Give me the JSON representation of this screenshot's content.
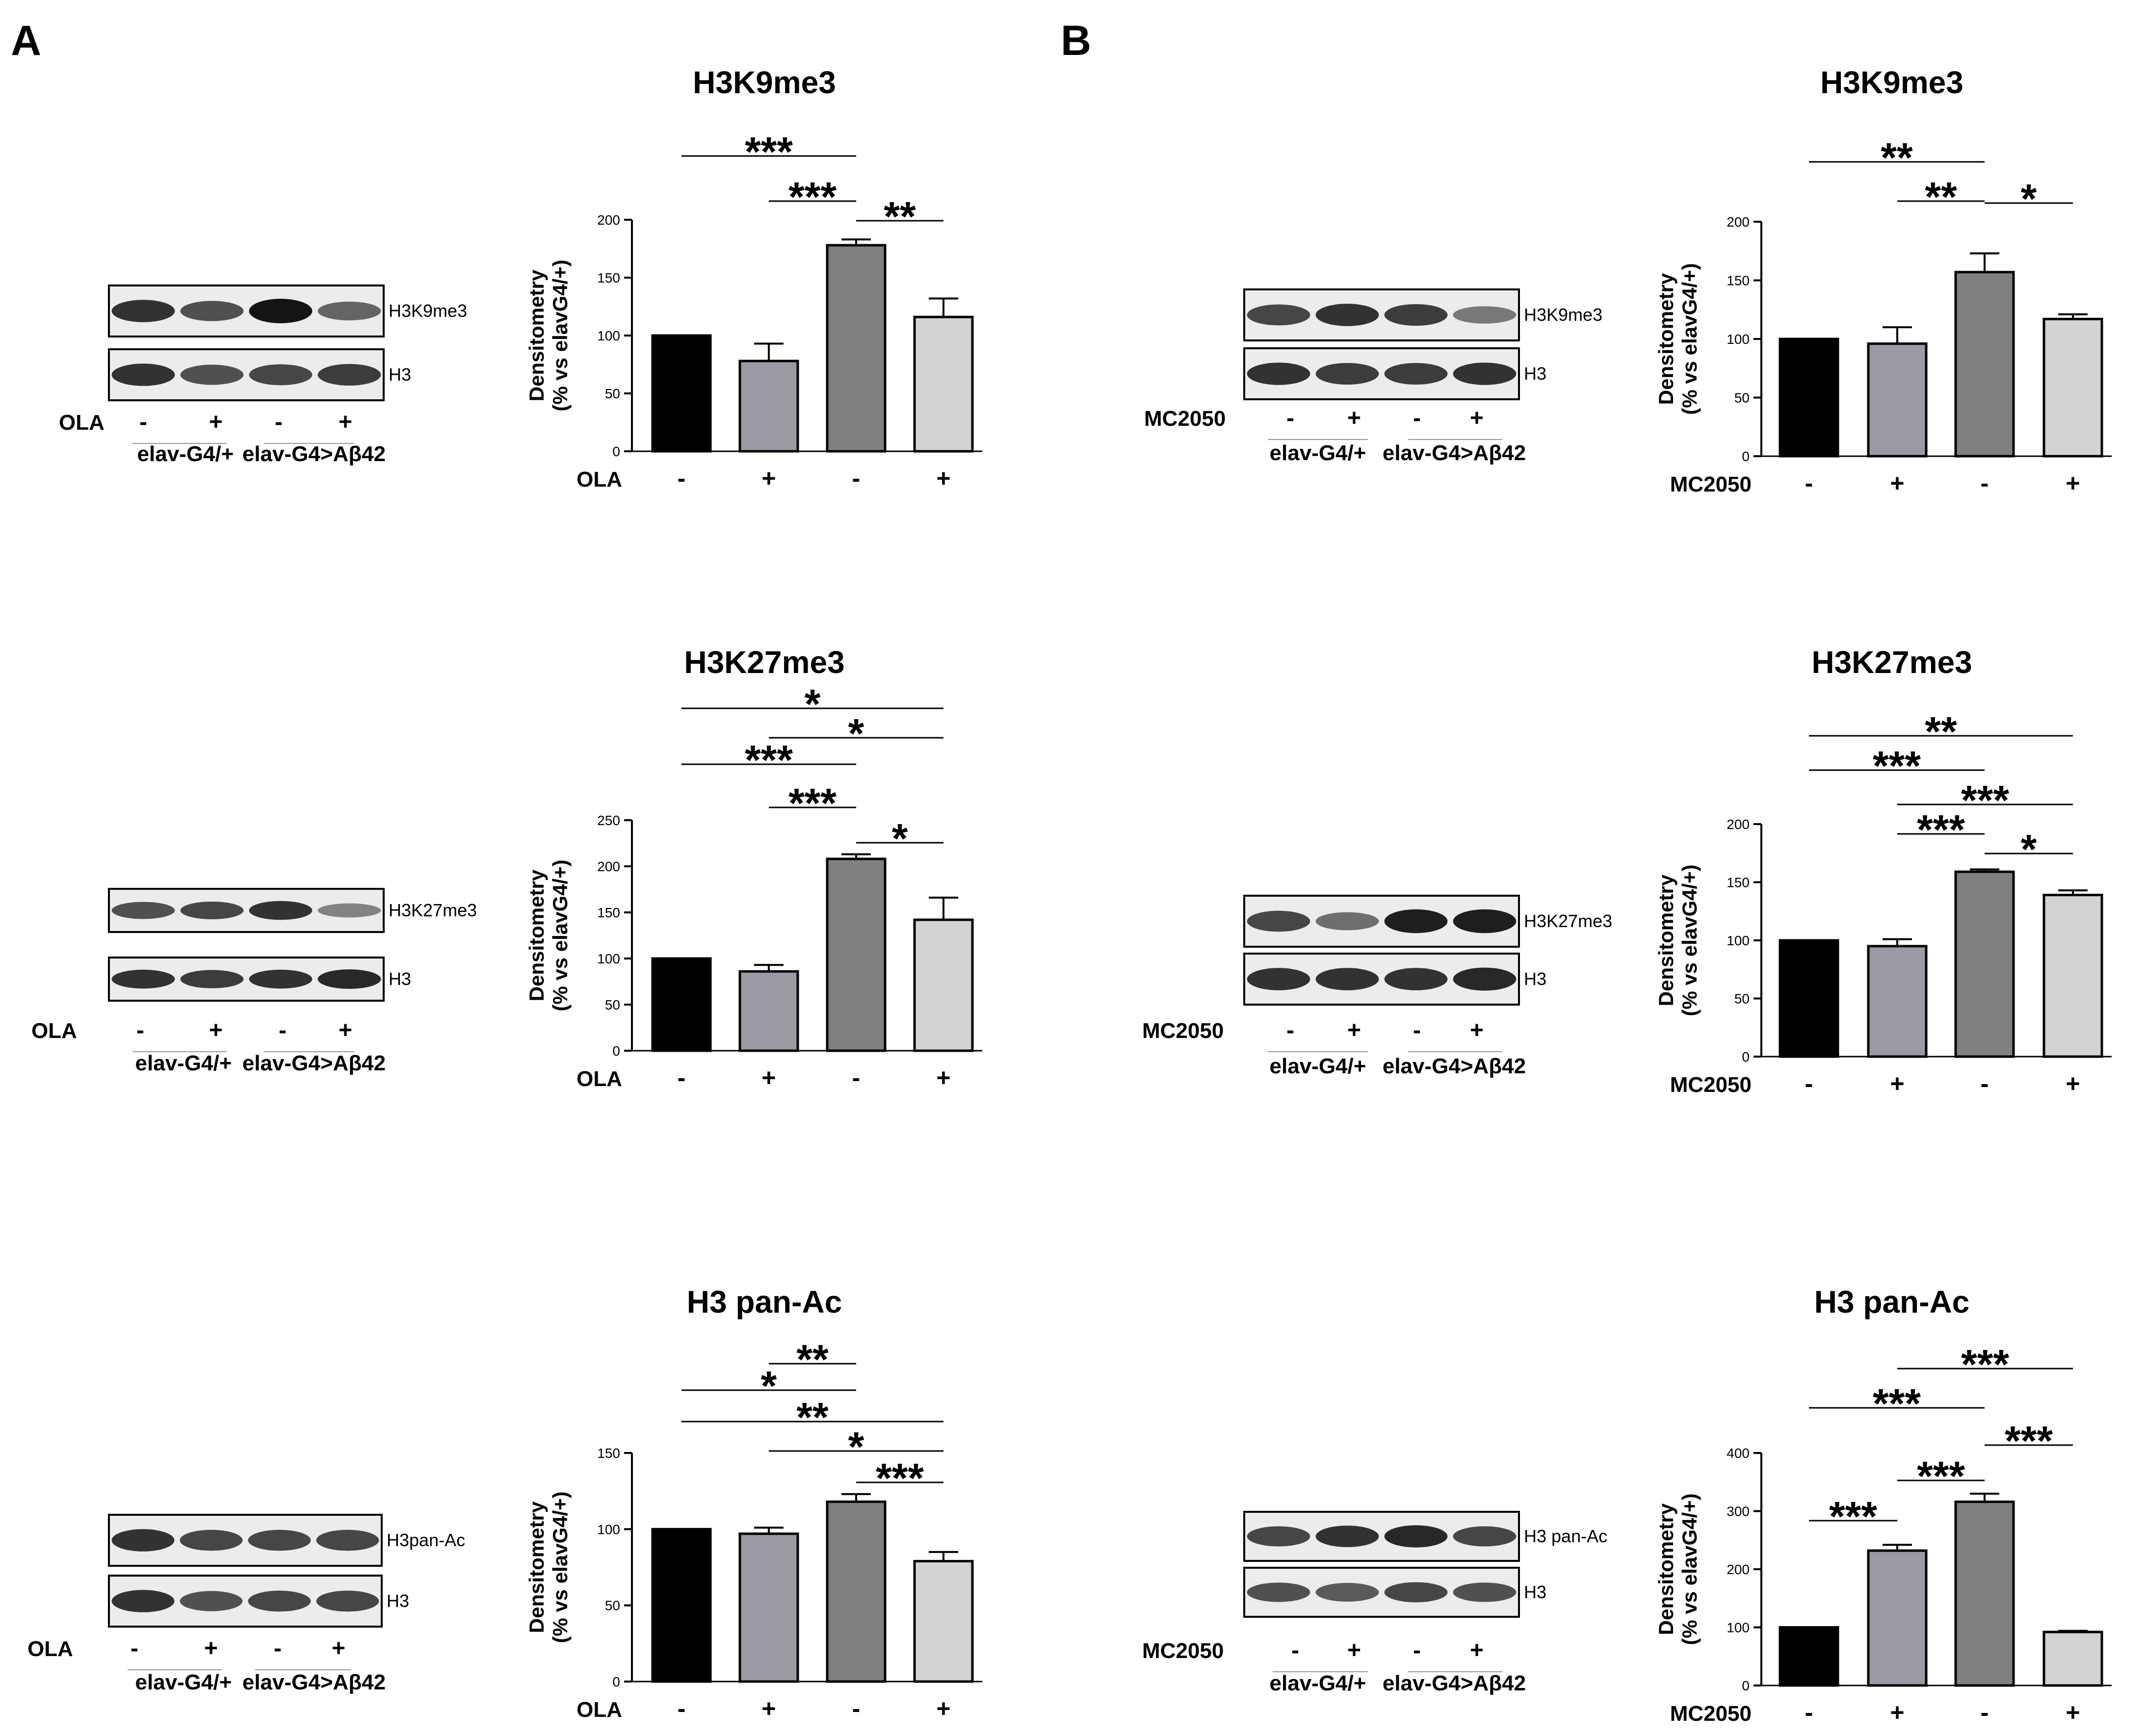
{
  "panels": [
    {
      "letter": "A",
      "treatment": "OLA",
      "blots": [
        {
          "title": "H3K9me3",
          "labels": [
            "H3K9me3",
            "H3"
          ],
          "intensity": [
            0.85,
            0.7,
            1.0,
            0.6
          ],
          "ctrl_intensity": [
            0.85,
            0.7,
            0.75,
            0.8
          ]
        },
        {
          "title": "H3K27me3",
          "labels": [
            "H3K27me3",
            "H3"
          ],
          "intensity": [
            0.7,
            0.75,
            0.85,
            0.45
          ],
          "ctrl_intensity": [
            0.85,
            0.8,
            0.85,
            0.9
          ]
        },
        {
          "title": "H3 pan-Ac",
          "labels": [
            "H3pan-Ac",
            "H3"
          ],
          "intensity": [
            0.85,
            0.75,
            0.75,
            0.75
          ],
          "ctrl_intensity": [
            0.85,
            0.7,
            0.75,
            0.75
          ]
        }
      ],
      "genotypes": [
        "elav-G4/+",
        "elav-G4>Aβ42"
      ]
    },
    {
      "letter": "B",
      "treatment": "MC2050",
      "blots": [
        {
          "title": "H3K9me3",
          "labels": [
            "H3K9me3",
            "H3"
          ],
          "intensity": [
            0.75,
            0.85,
            0.8,
            0.5
          ],
          "ctrl_intensity": [
            0.85,
            0.8,
            0.8,
            0.85
          ]
        },
        {
          "title": "H3K27me3",
          "labels": [
            "H3K27me3",
            "H3"
          ],
          "intensity": [
            0.75,
            0.55,
            0.95,
            0.95
          ],
          "ctrl_intensity": [
            0.85,
            0.85,
            0.85,
            0.9
          ]
        },
        {
          "title": "H3 pan-Ac",
          "labels": [
            "H3 pan-Ac",
            "H3"
          ],
          "intensity": [
            0.75,
            0.85,
            0.9,
            0.75
          ],
          "ctrl_intensity": [
            0.7,
            0.65,
            0.75,
            0.7
          ]
        }
      ],
      "genotypes": [
        "elav-G4/+",
        "elav-G4>Aβ42"
      ]
    }
  ],
  "treat_symbols": [
    "-",
    "+",
    "-",
    "+"
  ],
  "y_axis_label_1": "Densitometry",
  "y_axis_label_2": "(% vs elavG4/+)",
  "bar_colors": [
    "#000000",
    "#9a9aa2",
    "#808080",
    "#d3d3d3"
  ],
  "chart_data": [
    {
      "type": "bar",
      "title": "H3K9me3",
      "panel": "A",
      "xlabel": "OLA",
      "ylabel": "Densitometry (% vs elavG4/+)",
      "categories": [
        "-",
        "+",
        "-",
        "+"
      ],
      "values": [
        100,
        78,
        178,
        116
      ],
      "errors": [
        0,
        15,
        5,
        16
      ],
      "ylim": [
        0,
        200
      ],
      "yticks": [
        0,
        50,
        100,
        150,
        200
      ],
      "significance": [
        {
          "from": 0,
          "to": 2,
          "label": "***"
        },
        {
          "from": 1,
          "to": 2,
          "label": "***"
        },
        {
          "from": 2,
          "to": 3,
          "label": "**"
        }
      ]
    },
    {
      "type": "bar",
      "title": "H3K27me3",
      "panel": "A",
      "xlabel": "OLA",
      "ylabel": "Densitometry (% vs elavG4/+)",
      "categories": [
        "-",
        "+",
        "-",
        "+"
      ],
      "values": [
        100,
        86,
        208,
        142
      ],
      "errors": [
        0,
        7,
        5,
        24
      ],
      "ylim": [
        0,
        250
      ],
      "yticks": [
        0,
        50,
        100,
        150,
        200,
        250
      ],
      "significance": [
        {
          "from": 0,
          "to": 3,
          "label": "*"
        },
        {
          "from": 1,
          "to": 3,
          "label": "*"
        },
        {
          "from": 0,
          "to": 2,
          "label": "***"
        },
        {
          "from": 1,
          "to": 2,
          "label": "***"
        },
        {
          "from": 2,
          "to": 3,
          "label": "*"
        }
      ]
    },
    {
      "type": "bar",
      "title": "H3 pan-Ac",
      "panel": "A",
      "xlabel": "OLA",
      "ylabel": "Densitometry (% vs elavG4/+)",
      "categories": [
        "-",
        "+",
        "-",
        "+"
      ],
      "values": [
        100,
        97,
        118,
        79
      ],
      "errors": [
        0,
        4,
        5,
        6
      ],
      "ylim": [
        0,
        150
      ],
      "yticks": [
        0,
        50,
        100,
        150
      ],
      "significance": [
        {
          "from": 1,
          "to": 2,
          "label": "**"
        },
        {
          "from": 0,
          "to": 2,
          "label": "*"
        },
        {
          "from": 0,
          "to": 3,
          "label": "**"
        },
        {
          "from": 1,
          "to": 3,
          "label": "*"
        },
        {
          "from": 2,
          "to": 3,
          "label": "***"
        }
      ]
    },
    {
      "type": "bar",
      "title": "H3K9me3",
      "panel": "B",
      "xlabel": "MC2050",
      "ylabel": "Densitometry (% vs elavG4/+)",
      "categories": [
        "-",
        "+",
        "-",
        "+"
      ],
      "values": [
        100,
        96,
        157,
        117
      ],
      "errors": [
        0,
        14,
        16,
        4
      ],
      "ylim": [
        0,
        200
      ],
      "yticks": [
        0,
        50,
        100,
        150,
        200
      ],
      "significance": [
        {
          "from": 0,
          "to": 2,
          "label": "**"
        },
        {
          "from": 1,
          "to": 2,
          "label": "**"
        },
        {
          "from": 2,
          "to": 3,
          "label": "*"
        }
      ]
    },
    {
      "type": "bar",
      "title": "H3K27me3",
      "panel": "B",
      "xlabel": "MC2050",
      "ylabel": "Densitometry (% vs elavG4/+)",
      "categories": [
        "-",
        "+",
        "-",
        "+"
      ],
      "values": [
        100,
        95,
        159,
        139
      ],
      "errors": [
        0,
        6,
        2,
        4
      ],
      "ylim": [
        0,
        200
      ],
      "yticks": [
        0,
        50,
        100,
        150,
        200
      ],
      "significance": [
        {
          "from": 0,
          "to": 3,
          "label": "**"
        },
        {
          "from": 0,
          "to": 2,
          "label": "***"
        },
        {
          "from": 1,
          "to": 3,
          "label": "***"
        },
        {
          "from": 1,
          "to": 2,
          "label": "***"
        },
        {
          "from": 2,
          "to": 3,
          "label": "*"
        }
      ]
    },
    {
      "type": "bar",
      "title": "H3 pan-Ac",
      "panel": "B",
      "xlabel": "MC2050",
      "ylabel": "Densitometry (% vs elavG4/+)",
      "categories": [
        "-",
        "+",
        "-",
        "+"
      ],
      "values": [
        100,
        232,
        316,
        92
      ],
      "errors": [
        0,
        10,
        14,
        2
      ],
      "ylim": [
        0,
        400
      ],
      "yticks": [
        0,
        100,
        200,
        300,
        400
      ],
      "significance": [
        {
          "from": 1,
          "to": 3,
          "label": "***"
        },
        {
          "from": 0,
          "to": 2,
          "label": "***"
        },
        {
          "from": 2,
          "to": 3,
          "label": "***"
        },
        {
          "from": 1,
          "to": 2,
          "label": "***"
        },
        {
          "from": 0,
          "to": 1,
          "label": "***"
        }
      ]
    }
  ]
}
